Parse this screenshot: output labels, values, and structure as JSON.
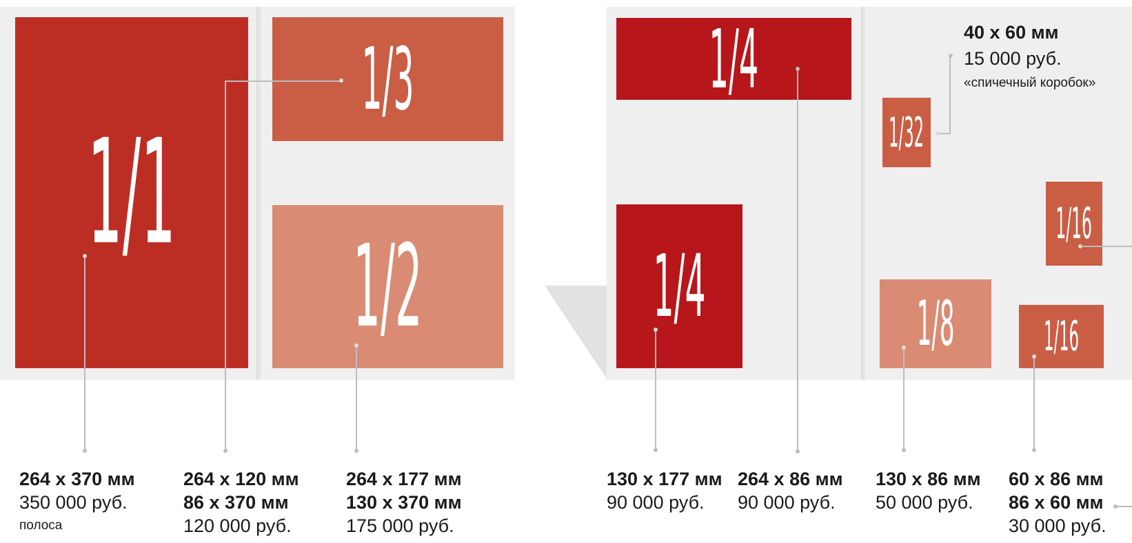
{
  "colors": {
    "full": "#bc2e24",
    "third": "#c95e45",
    "half": "#d98b73",
    "quarter": "#b7161b",
    "small": "#c95e45",
    "eighth": "#d98b73"
  },
  "blocks": {
    "b1_1": "1/1",
    "b1_3": "1/3",
    "b1_2": "1/2",
    "b1_4_top": "1/4",
    "b1_4_left": "1/4",
    "b1_32": "1/32",
    "b1_16_top": "1/16",
    "b1_8": "1/8",
    "b1_16_bottom": "1/16"
  },
  "matchbox": {
    "size": "40 x 60 мм",
    "price": "15 000 руб.",
    "note": "«спичечный коробок»"
  },
  "labels": {
    "full": {
      "size": "264 x 370 мм",
      "price": "350 000 руб.",
      "note": "полоса"
    },
    "third": {
      "size1": "264 x 120 мм",
      "size2": "86 x 370 мм",
      "price": "120 000 руб."
    },
    "half": {
      "size1": "264 x 177 мм",
      "size2": "130 x 370 мм",
      "price": "175 000 руб."
    },
    "quarter_v": {
      "size": "130 x 177 мм",
      "price": "90 000 руб."
    },
    "quarter_h": {
      "size": "264 x 86 мм",
      "price": "90 000 руб."
    },
    "eighth": {
      "size": "130 x 86 мм",
      "price": "50 000 руб."
    },
    "sixteenth": {
      "size1": "60 x 86 мм",
      "size2": "86 x 60 мм",
      "price": "30 000 руб."
    }
  }
}
